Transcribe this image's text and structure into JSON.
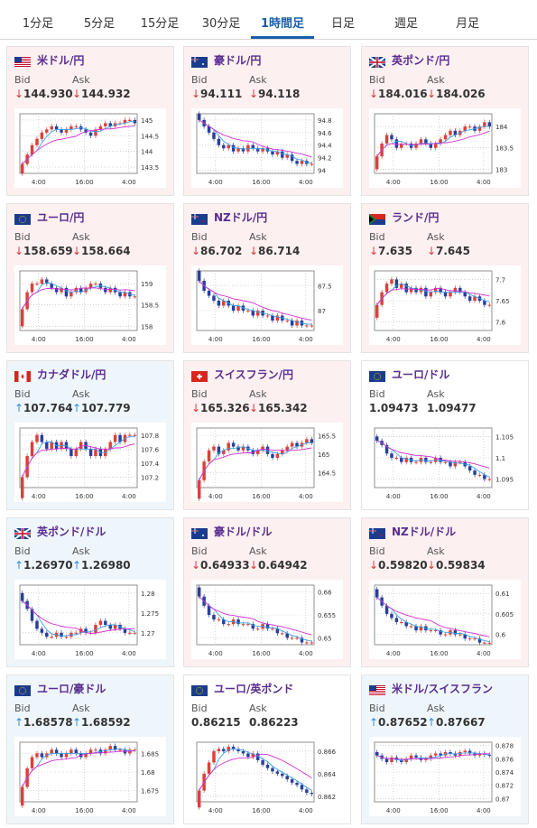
{
  "tabs": [
    {
      "label": "1分足",
      "active": false
    },
    {
      "label": "5分足",
      "active": false
    },
    {
      "label": "15分足",
      "active": false
    },
    {
      "label": "30分足",
      "active": false
    },
    {
      "label": "1時間足",
      "active": true
    },
    {
      "label": "日足",
      "active": false
    },
    {
      "label": "週足",
      "active": false
    },
    {
      "label": "月足",
      "active": false
    }
  ],
  "labels": {
    "bid": "Bid",
    "ask": "Ask"
  },
  "colors": {
    "down_bg": "#fdf0f1",
    "up_bg": "#eef6fc",
    "down_arrow": "#d33b3b",
    "up_arrow": "#2f8fd6",
    "candle_up": "#d9413b",
    "candle_down": "#2a3f9b",
    "ma_short": "#3aa0e8",
    "ma_long": "#d12fd1"
  },
  "pairs": [
    {
      "name": "米ドル/円",
      "flag": "us",
      "direction": "down",
      "bid": "144.930",
      "ask": "144.932",
      "chart_data": {
        "type": "candlestick",
        "y_ticks": [
          "145",
          "144.5",
          "144",
          "143.5"
        ],
        "ylim": [
          143.3,
          145.2
        ],
        "x_ticks": [
          "4:00",
          "16:00",
          "4:00"
        ],
        "close": [
          143.6,
          143.9,
          144.2,
          144.4,
          144.6,
          144.7,
          144.8,
          144.7,
          144.6,
          144.7,
          144.8,
          144.8,
          144.7,
          144.6,
          144.5,
          144.7,
          144.8,
          144.9,
          144.8,
          144.9,
          144.9,
          145.0,
          145.0,
          144.9
        ]
      }
    },
    {
      "name": "豪ドル/円",
      "flag": "au",
      "direction": "down",
      "bid": "94.111",
      "ask": "94.118",
      "chart_data": {
        "type": "candlestick",
        "y_ticks": [
          "94.8",
          "94.6",
          "94.4",
          "94.2",
          "94"
        ],
        "ylim": [
          93.95,
          94.9
        ],
        "x_ticks": [
          "4:00",
          "16:00",
          "4:00"
        ],
        "close": [
          94.8,
          94.7,
          94.6,
          94.5,
          94.4,
          94.35,
          94.4,
          94.3,
          94.35,
          94.3,
          94.4,
          94.35,
          94.3,
          94.35,
          94.3,
          94.25,
          94.3,
          94.2,
          94.25,
          94.15,
          94.1,
          94.15,
          94.1,
          94.1
        ]
      }
    },
    {
      "name": "英ポンド/円",
      "flag": "gb",
      "direction": "down",
      "bid": "184.016",
      "ask": "184.026",
      "chart_data": {
        "type": "candlestick",
        "y_ticks": [
          "184",
          "183.5",
          "183"
        ],
        "ylim": [
          182.9,
          184.3
        ],
        "x_ticks": [
          "4:00",
          "16:00",
          "4:00"
        ],
        "close": [
          183.3,
          183.6,
          183.8,
          183.7,
          183.5,
          183.6,
          183.6,
          183.5,
          183.6,
          183.7,
          183.6,
          183.5,
          183.6,
          183.7,
          183.8,
          183.9,
          183.8,
          183.9,
          184.0,
          184.0,
          183.9,
          184.0,
          184.1,
          184.0
        ]
      }
    },
    {
      "name": "ユーロ/円",
      "flag": "eu",
      "direction": "down",
      "bid": "158.659",
      "ask": "158.664",
      "chart_data": {
        "type": "candlestick",
        "y_ticks": [
          "159",
          "158.5",
          "158"
        ],
        "ylim": [
          157.9,
          159.3
        ],
        "x_ticks": [
          "4:00",
          "16:00",
          "4:00"
        ],
        "close": [
          158.4,
          158.8,
          159.0,
          159.0,
          159.1,
          159.0,
          158.9,
          158.8,
          158.9,
          158.7,
          158.8,
          158.9,
          158.8,
          158.9,
          159.0,
          159.0,
          158.9,
          158.8,
          158.9,
          158.8,
          158.7,
          158.8,
          158.7,
          158.7
        ]
      }
    },
    {
      "name": "NZドル/円",
      "flag": "nz",
      "direction": "down",
      "bid": "86.702",
      "ask": "86.714",
      "chart_data": {
        "type": "candlestick",
        "y_ticks": [
          "87.5",
          "87"
        ],
        "ylim": [
          86.6,
          87.8
        ],
        "x_ticks": [
          "4:00",
          "16:00",
          "4:00"
        ],
        "close": [
          87.6,
          87.4,
          87.3,
          87.2,
          87.1,
          87.2,
          87.1,
          87.0,
          87.1,
          87.0,
          87.0,
          86.9,
          87.0,
          86.9,
          86.9,
          86.8,
          86.9,
          86.8,
          86.8,
          86.7,
          86.8,
          86.7,
          86.7,
          86.7
        ]
      }
    },
    {
      "name": "ランド/円",
      "flag": "za",
      "direction": "down",
      "bid": "7.635",
      "ask": "7.645",
      "chart_data": {
        "type": "candlestick",
        "y_ticks": [
          "7.7",
          "7.65",
          "7.6"
        ],
        "ylim": [
          7.58,
          7.72
        ],
        "x_ticks": [
          "4:00",
          "16:00",
          "4:00"
        ],
        "close": [
          7.64,
          7.67,
          7.69,
          7.7,
          7.68,
          7.69,
          7.67,
          7.68,
          7.67,
          7.68,
          7.66,
          7.67,
          7.68,
          7.67,
          7.66,
          7.67,
          7.68,
          7.67,
          7.66,
          7.65,
          7.66,
          7.65,
          7.64,
          7.64
        ]
      }
    },
    {
      "name": "カナダドル/円",
      "flag": "ca",
      "direction": "up",
      "bid": "107.764",
      "ask": "107.779",
      "chart_data": {
        "type": "candlestick",
        "y_ticks": [
          "107.8",
          "107.6",
          "107.4",
          "107.2"
        ],
        "ylim": [
          107.05,
          107.9
        ],
        "x_ticks": [
          "4:00",
          "16:00",
          "4:00"
        ],
        "close": [
          107.2,
          107.5,
          107.7,
          107.8,
          107.7,
          107.6,
          107.7,
          107.6,
          107.7,
          107.6,
          107.5,
          107.6,
          107.7,
          107.6,
          107.5,
          107.6,
          107.5,
          107.6,
          107.7,
          107.8,
          107.7,
          107.8,
          107.8,
          107.8
        ]
      }
    },
    {
      "name": "スイスフラン/円",
      "flag": "ch",
      "direction": "down",
      "bid": "165.326",
      "ask": "165.342",
      "chart_data": {
        "type": "candlestick",
        "y_ticks": [
          "165.5",
          "165",
          "164.5"
        ],
        "ylim": [
          164.1,
          165.7
        ],
        "x_ticks": [
          "4:00",
          "16:00",
          "4:00"
        ],
        "close": [
          164.3,
          164.8,
          165.1,
          165.2,
          165.0,
          165.1,
          165.3,
          165.2,
          165.1,
          165.2,
          165.1,
          165.0,
          165.1,
          165.2,
          165.0,
          164.9,
          165.0,
          165.1,
          165.2,
          165.3,
          165.2,
          165.3,
          165.4,
          165.3
        ]
      }
    },
    {
      "name": "ユーロ/ドル",
      "flag": "eu",
      "direction": "flat",
      "bid": "1.09473",
      "ask": "1.09477",
      "chart_data": {
        "type": "candlestick",
        "y_ticks": [
          "1.105",
          "1.1",
          "1.095"
        ],
        "ylim": [
          1.093,
          1.107
        ],
        "x_ticks": [
          "4:00",
          "16:00",
          "4:00"
        ],
        "close": [
          1.104,
          1.103,
          1.101,
          1.1,
          1.1,
          1.099,
          1.1,
          1.099,
          1.099,
          1.1,
          1.099,
          1.099,
          1.1,
          1.099,
          1.099,
          1.098,
          1.099,
          1.099,
          1.098,
          1.097,
          1.096,
          1.096,
          1.095,
          1.095
        ]
      }
    },
    {
      "name": "英ポンド/ドル",
      "flag": "gb",
      "direction": "up",
      "bid": "1.26970",
      "ask": "1.26980",
      "chart_data": {
        "type": "candlestick",
        "y_ticks": [
          "1.28",
          "1.275",
          "1.27"
        ],
        "ylim": [
          1.267,
          1.282
        ],
        "x_ticks": [
          "4:00",
          "16:00",
          "4:00"
        ],
        "close": [
          1.278,
          1.276,
          1.273,
          1.271,
          1.27,
          1.269,
          1.269,
          1.27,
          1.269,
          1.269,
          1.27,
          1.27,
          1.271,
          1.27,
          1.27,
          1.272,
          1.273,
          1.272,
          1.271,
          1.272,
          1.271,
          1.27,
          1.27,
          1.27
        ]
      }
    },
    {
      "name": "豪ドル/ドル",
      "flag": "au",
      "direction": "down",
      "bid": "0.64933",
      "ask": "0.64942",
      "chart_data": {
        "type": "candlestick",
        "y_ticks": [
          "0.66",
          "0.655",
          "0.65"
        ],
        "ylim": [
          0.6485,
          0.6615
        ],
        "x_ticks": [
          "4:00",
          "16:00",
          "4:00"
        ],
        "close": [
          0.659,
          0.657,
          0.655,
          0.654,
          0.654,
          0.653,
          0.653,
          0.654,
          0.653,
          0.653,
          0.653,
          0.652,
          0.652,
          0.653,
          0.652,
          0.652,
          0.651,
          0.651,
          0.65,
          0.65,
          0.65,
          0.649,
          0.649,
          0.649
        ]
      }
    },
    {
      "name": "NZドル/ドル",
      "flag": "nz",
      "direction": "down",
      "bid": "0.59820",
      "ask": "0.59834",
      "chart_data": {
        "type": "candlestick",
        "y_ticks": [
          "0.61",
          "0.605",
          "0.6"
        ],
        "ylim": [
          0.5975,
          0.612
        ],
        "x_ticks": [
          "4:00",
          "16:00",
          "4:00"
        ],
        "close": [
          0.609,
          0.607,
          0.605,
          0.604,
          0.603,
          0.603,
          0.602,
          0.602,
          0.601,
          0.602,
          0.601,
          0.601,
          0.601,
          0.6,
          0.6,
          0.601,
          0.6,
          0.6,
          0.599,
          0.599,
          0.599,
          0.598,
          0.598,
          0.598
        ]
      }
    },
    {
      "name": "ユーロ/豪ドル",
      "flag": "eu",
      "direction": "up",
      "bid": "1.68578",
      "ask": "1.68592",
      "chart_data": {
        "type": "candlestick",
        "y_ticks": [
          "1.685",
          "1.68",
          "1.675"
        ],
        "ylim": [
          1.672,
          1.688
        ],
        "x_ticks": [
          "4:00",
          "16:00",
          "4:00"
        ],
        "close": [
          1.676,
          1.681,
          1.684,
          1.685,
          1.684,
          1.685,
          1.686,
          1.685,
          1.684,
          1.685,
          1.686,
          1.685,
          1.684,
          1.685,
          1.686,
          1.686,
          1.685,
          1.686,
          1.687,
          1.686,
          1.686,
          1.685,
          1.686,
          1.686
        ]
      }
    },
    {
      "name": "ユーロ/英ポンド",
      "flag": "eu",
      "direction": "flat",
      "bid": "0.86215",
      "ask": "0.86223",
      "chart_data": {
        "type": "candlestick",
        "y_ticks": [
          "0.866",
          "0.864",
          "0.862"
        ],
        "ylim": [
          0.8615,
          0.8668
        ],
        "x_ticks": [
          "4:00",
          "16:00",
          "4:00"
        ],
        "close": [
          0.8625,
          0.864,
          0.865,
          0.866,
          0.8662,
          0.866,
          0.8664,
          0.8662,
          0.866,
          0.8658,
          0.8655,
          0.8658,
          0.8652,
          0.8648,
          0.8645,
          0.8642,
          0.864,
          0.8638,
          0.8635,
          0.8632,
          0.863,
          0.8626,
          0.8623,
          0.8622
        ]
      }
    },
    {
      "name": "米ドル/スイスフラン",
      "flag": "us",
      "direction": "up",
      "bid": "0.87652",
      "ask": "0.87667",
      "chart_data": {
        "type": "candlestick",
        "y_ticks": [
          "0.878",
          "0.876",
          "0.874",
          "0.872",
          "0.87"
        ],
        "ylim": [
          0.8695,
          0.8785
        ],
        "x_ticks": [
          "4:00",
          "16:00",
          "4:00"
        ],
        "close": [
          0.8765,
          0.876,
          0.8755,
          0.8762,
          0.8758,
          0.8755,
          0.876,
          0.8765,
          0.8762,
          0.8758,
          0.876,
          0.8765,
          0.8768,
          0.8765,
          0.877,
          0.8768,
          0.8765,
          0.877,
          0.8772,
          0.8768,
          0.8765,
          0.8768,
          0.8766,
          0.8765
        ]
      }
    }
  ]
}
